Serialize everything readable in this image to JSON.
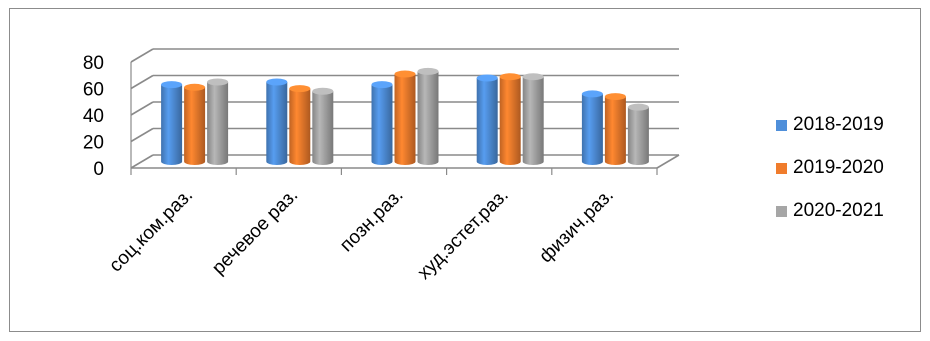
{
  "chart_data": {
    "type": "bar",
    "title": "",
    "xlabel": "",
    "ylabel": "",
    "ylim": [
      0,
      80
    ],
    "yticks": [
      "0",
      "20",
      "40",
      "60",
      "80"
    ],
    "grid": true,
    "three_d": true,
    "legend_position": "right",
    "categories": [
      "соц.ком.раз.",
      "речевое раз.",
      "позн.раз.",
      "худ.эстет.раз.",
      "физич.раз."
    ],
    "series": [
      {
        "name": "2018-2019",
        "color": "#4f8fda",
        "values": [
          58,
          60,
          58,
          63,
          51
        ]
      },
      {
        "name": "2019-2020",
        "color": "#f07c2c",
        "values": [
          56,
          55,
          66,
          64,
          49
        ]
      },
      {
        "name": "2020-2021",
        "color": "#a6a6a6",
        "values": [
          60,
          53,
          68,
          64,
          41
        ]
      }
    ]
  }
}
